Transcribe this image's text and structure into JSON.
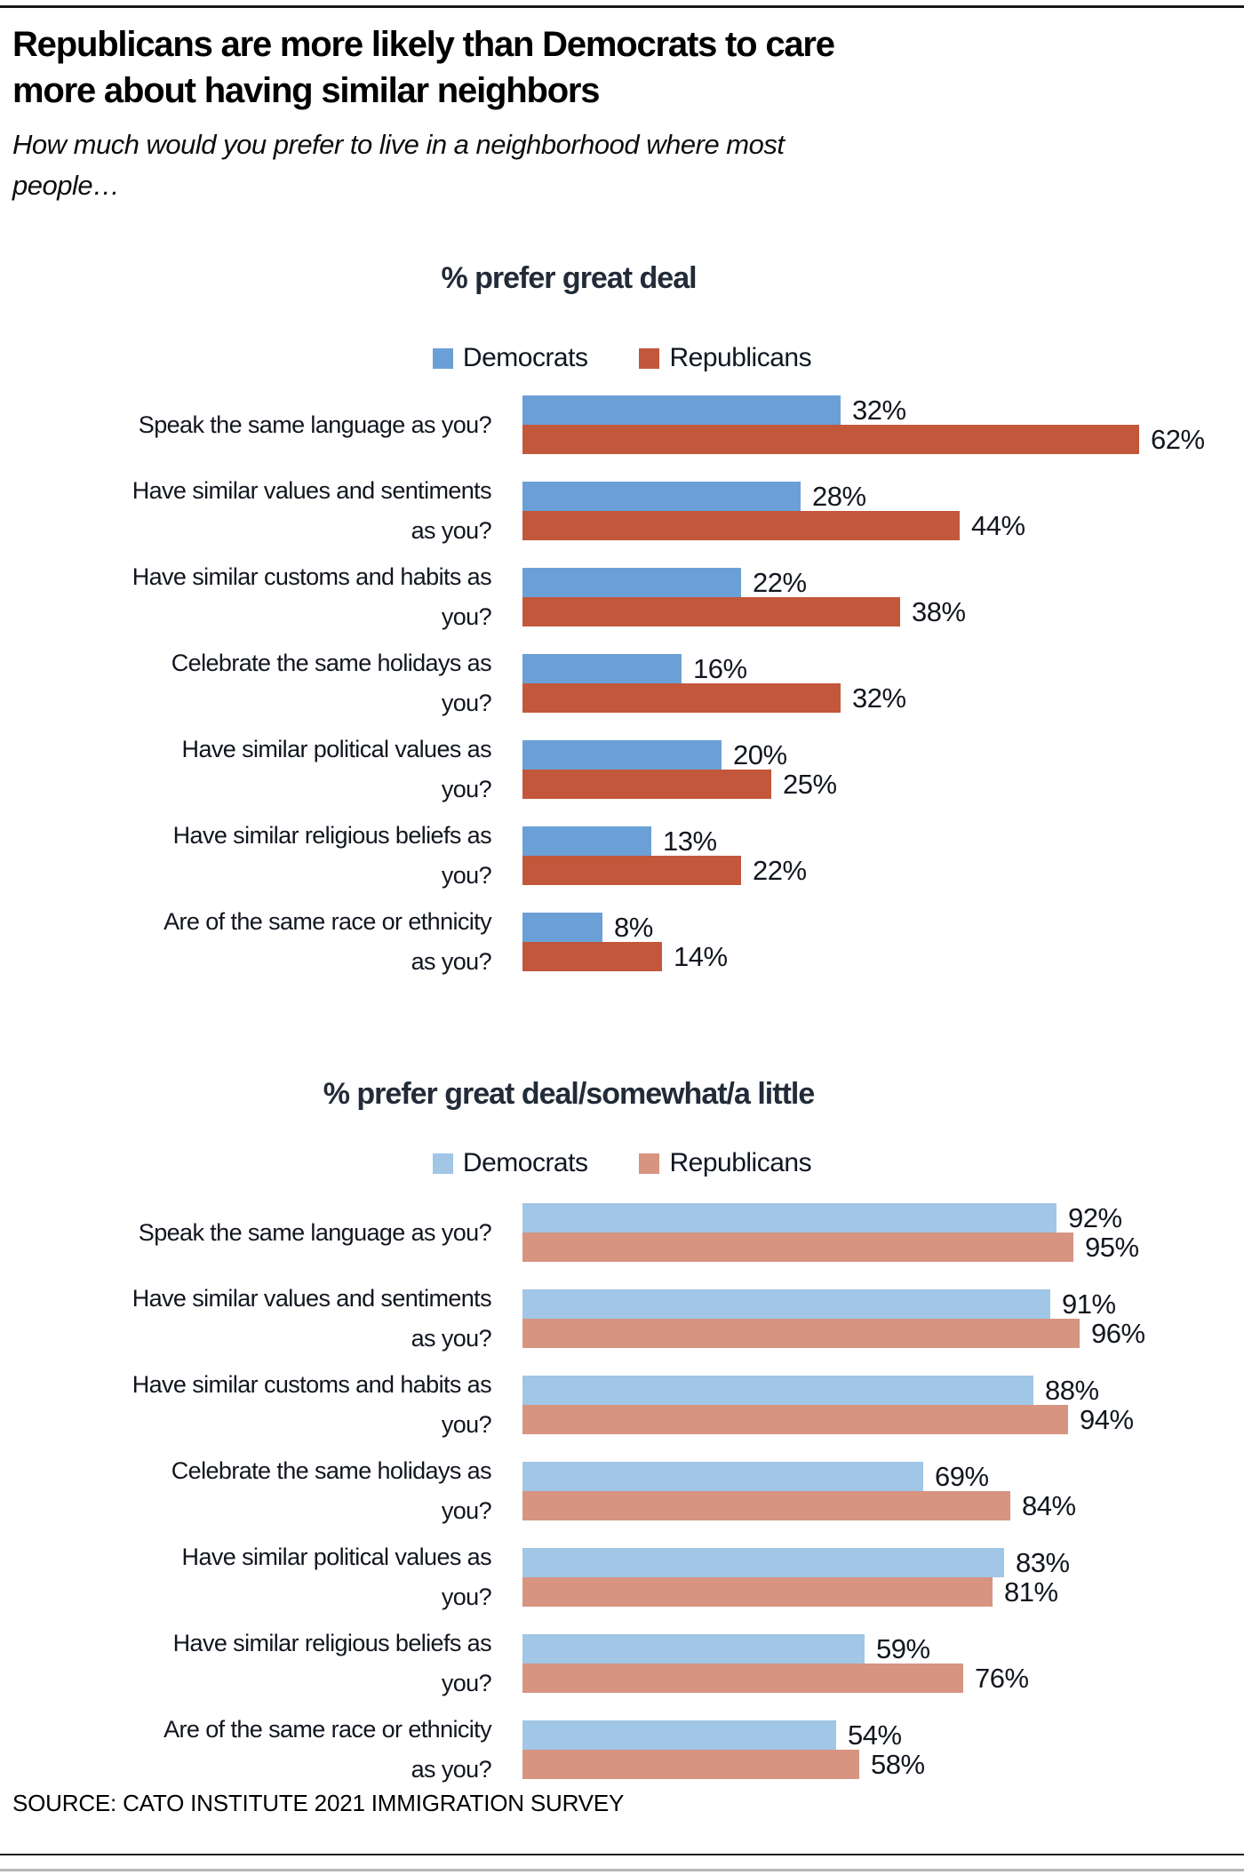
{
  "page": {
    "title_lines": [
      "Republicans are more likely than Democrats to care",
      "more about having similar neighbors"
    ],
    "subtitle_lines": [
      "How much would you prefer to live in a neighborhood where most",
      "people…"
    ],
    "source": "SOURCE: CATO INSTITUTE 2021 IMMIGRATION SURVEY"
  },
  "colors": {
    "chart1_democrat": "#6BA0D6",
    "chart1_republican": "#C3573C",
    "chart2_democrat": "#A1C6E6",
    "chart2_republican": "#D69481",
    "text_dark": "#12161f",
    "title_navy": "#222b38"
  },
  "chart_data": [
    {
      "type": "bar",
      "orientation": "horizontal",
      "title": "% prefer great deal",
      "legend": [
        "Democrats",
        "Republicans"
      ],
      "legend_position": "top",
      "grid": false,
      "value_suffix": "%",
      "xlim": [
        0,
        65
      ],
      "categories": [
        "Speak the same language as you?",
        "Have similar values and sentiments as you?",
        "Have similar customs and habits as you?",
        "Celebrate the same holidays as you?",
        "Have similar political values as you?",
        "Have similar religious beliefs as you?",
        "Are of the same race or ethnicity as you?"
      ],
      "category_lines": [
        [
          "Speak the same language as you?"
        ],
        [
          "Have similar values and sentiments",
          "as you?"
        ],
        [
          "Have similar customs and habits as",
          "you?"
        ],
        [
          "Celebrate the same holidays as",
          "you?"
        ],
        [
          "Have similar political values as",
          "you?"
        ],
        [
          "Have similar religious beliefs as",
          "you?"
        ],
        [
          "Are of the same race or ethnicity",
          "as you?"
        ]
      ],
      "series": [
        {
          "name": "Democrats",
          "values": [
            32,
            28,
            22,
            16,
            20,
            13,
            8
          ]
        },
        {
          "name": "Republicans",
          "values": [
            62,
            44,
            38,
            32,
            25,
            22,
            14
          ]
        }
      ]
    },
    {
      "type": "bar",
      "orientation": "horizontal",
      "title": "% prefer great deal/somewhat/a little",
      "legend": [
        "Democrats",
        "Republicans"
      ],
      "legend_position": "top",
      "grid": false,
      "value_suffix": "%",
      "xlim": [
        0,
        100
      ],
      "categories": [
        "Speak the same language as you?",
        "Have similar values and sentiments as you?",
        "Have similar customs and habits as you?",
        "Celebrate the same holidays as you?",
        "Have similar political values as you?",
        "Have similar religious beliefs as you?",
        "Are of the same race or ethnicity as you?"
      ],
      "category_lines": [
        [
          "Speak the same language as you?"
        ],
        [
          "Have similar values and sentiments",
          "as you?"
        ],
        [
          "Have similar customs and habits as",
          "you?"
        ],
        [
          "Celebrate the same holidays as",
          "you?"
        ],
        [
          "Have similar political values as",
          "you?"
        ],
        [
          "Have similar religious beliefs as",
          "you?"
        ],
        [
          "Are of the same race or ethnicity",
          "as you?"
        ]
      ],
      "series": [
        {
          "name": "Democrats",
          "values": [
            92,
            91,
            88,
            69,
            83,
            59,
            54
          ]
        },
        {
          "name": "Republicans",
          "values": [
            95,
            96,
            94,
            84,
            81,
            76,
            58
          ]
        }
      ]
    }
  ]
}
